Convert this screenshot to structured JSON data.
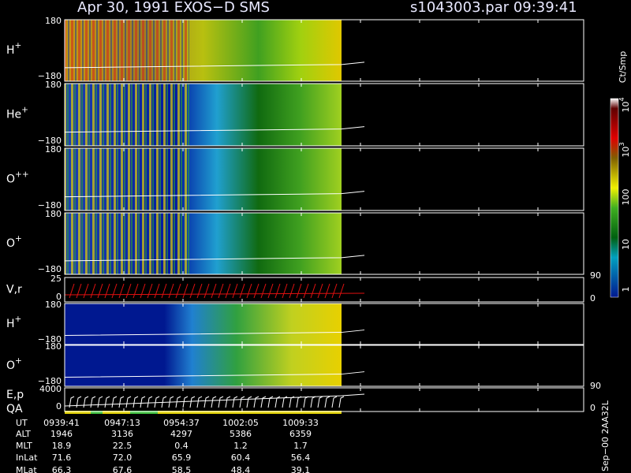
{
  "header": {
    "title": "Apr 30, 1991    EXOS−D SMS",
    "file": "s1043003.par  09:39:41"
  },
  "panels": [
    {
      "label": {
        "base": "H",
        "sup": "+"
      },
      "top": "180",
      "bottom": "−180"
    },
    {
      "label": {
        "base": "He",
        "sup": "+"
      },
      "top": "180",
      "bottom": "−180"
    },
    {
      "label": {
        "base": "O",
        "sup": "++"
      },
      "top": "180",
      "bottom": "−180"
    },
    {
      "label": {
        "base": "O",
        "sup": "+"
      },
      "top": "180",
      "bottom": "−180"
    },
    {
      "label": {
        "base": "V,r"
      },
      "top": "25",
      "bottom": "0",
      "right_top": "90",
      "right_bottom": "0"
    },
    {
      "label": {
        "base": "H",
        "sup": "+"
      },
      "top": "180",
      "bottom": "−180"
    },
    {
      "label": {
        "base": "O",
        "sup": "+"
      },
      "top": "180",
      "bottom": "−180"
    },
    {
      "label": {
        "base": "E,p",
        "line2": "QA"
      },
      "top": "4000",
      "bottom": "0",
      "right_top": "90",
      "right_bottom": "0"
    }
  ],
  "colorbar": {
    "label": "Ct/Smp",
    "ticks": [
      {
        "base": "10",
        "sup": "4"
      },
      {
        "base": "10",
        "sup": "3"
      },
      {
        "base": "100"
      },
      {
        "base": "10"
      },
      {
        "base": "1"
      }
    ]
  },
  "footer": {
    "rows": [
      [
        "UT",
        "0939:41",
        "0947:13",
        "0954:37",
        "1002:05",
        "1009:33"
      ],
      [
        "ALT",
        "1946",
        "3136",
        "4297",
        "5386",
        "6359"
      ],
      [
        "MLT",
        "18.9",
        "22.5",
        "0.4",
        "1.2",
        "1.7"
      ],
      [
        "InLat",
        "71.6",
        "72.0",
        "65.9",
        "60.4",
        "56.4"
      ],
      [
        "MLat",
        "66.3",
        "67.6",
        "58.5",
        "48.4",
        "39.1"
      ]
    ]
  },
  "stamp": "Sep−00  2AA32L"
}
